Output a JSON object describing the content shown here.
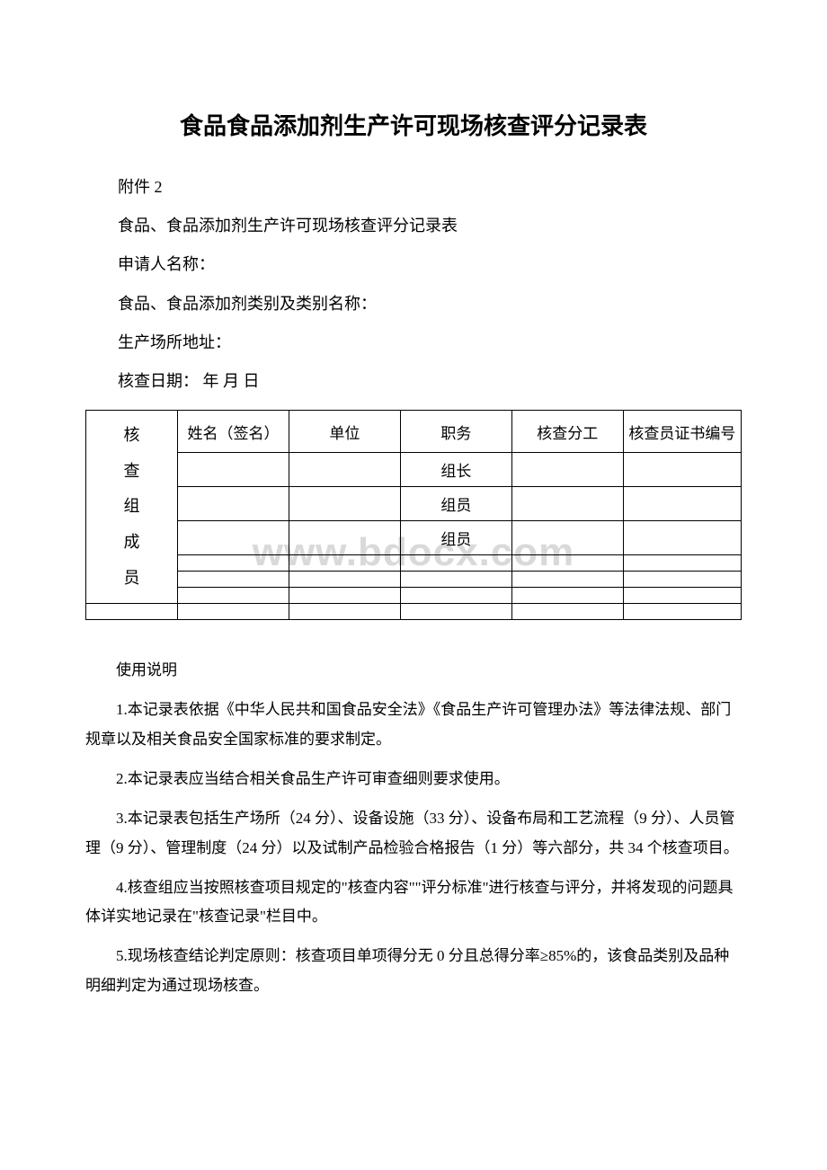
{
  "title": "食品食品添加剂生产许可现场核查评分记录表",
  "attachment_label": "附件 2",
  "subtitle": "食品、食品添加剂生产许可现场核查评分记录表",
  "fields": {
    "applicant_label": "申请人名称：",
    "category_label": "食品、食品添加剂类别及类别名称：",
    "address_label": "生产场所地址：",
    "date_label": "核查日期：  年 月 日"
  },
  "table": {
    "row_header": "核查组成员",
    "columns": {
      "name": "姓名（签名）",
      "unit": "单位",
      "position": "职务",
      "division": "核查分工",
      "cert_no": "核查员证书编号"
    },
    "positions": {
      "leader": "组长",
      "member": "组员"
    }
  },
  "instructions": {
    "heading": "使用说明",
    "items": [
      "1.本记录表依据《中华人民共和国食品安全法》《食品生产许可管理办法》等法律法规、部门规章以及相关食品安全国家标准的要求制定。",
      "2.本记录表应当结合相关食品生产许可审查细则要求使用。",
      "3.本记录表包括生产场所（24 分）、设备设施（33 分）、设备布局和工艺流程（9 分）、人员管理（9 分）、管理制度（24 分）以及试制产品检验合格报告（1 分）等六部分，共 34 个核查项目。",
      "4.核查组应当按照核查项目规定的\"核查内容\"\"评分标准\"进行核查与评分，并将发现的问题具体详实地记录在\"核查记录\"栏目中。",
      "5.现场核查结论判定原则：核查项目单项得分无 0 分且总得分率≥85%的，该食品类别及品种明细判定为通过现场核查。"
    ]
  },
  "watermark": "www.bdocx.com"
}
